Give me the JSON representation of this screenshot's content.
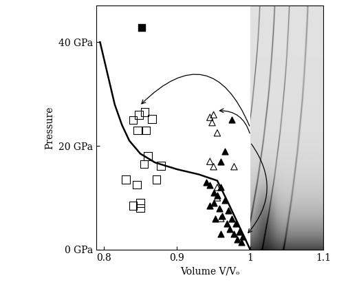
{
  "chart_data": {
    "type": "scatter",
    "x_label": "Volume V/Vₒ",
    "y_label": "Pressure",
    "xlim": [
      0.79,
      1.1
    ],
    "ylim": [
      0,
      47
    ],
    "xticks": [
      0.8,
      0.9,
      1,
      1.1
    ],
    "yticks": [
      {
        "value": 0,
        "label": "0 GPa"
      },
      {
        "value": 20,
        "label": "20 GPa"
      },
      {
        "value": 40,
        "label": "40 GPa"
      }
    ],
    "grid": false,
    "series": [
      {
        "type": "line",
        "color": "#000000",
        "line_style": "solid",
        "x": [
          0.795,
          0.805,
          0.815,
          0.825,
          0.835,
          0.85,
          0.87,
          0.9,
          0.93,
          0.955,
          0.97,
          0.985,
          1.0
        ],
        "values": [
          40,
          34,
          28,
          24,
          21,
          18.5,
          16.8,
          15.5,
          14.5,
          13.3,
          9,
          4.5,
          0
        ]
      },
      {
        "type": "scatter",
        "marker": "filled_square",
        "color": "#000000",
        "x": [
          0.852
        ],
        "values": [
          42.8
        ]
      },
      {
        "type": "scatter",
        "marker": "open_square",
        "color": "#000000",
        "x": [
          0.84,
          0.848,
          0.856,
          0.866,
          0.846,
          0.855,
          0.878,
          0.85,
          0.858,
          0.83,
          0.84,
          0.85,
          0.86,
          0.872,
          0.845
        ],
        "values": [
          25,
          26,
          26.5,
          25.2,
          23,
          16.5,
          16.2,
          8,
          23,
          13.5,
          8.5,
          9,
          18,
          13.5,
          12.5
        ]
      },
      {
        "type": "scatter",
        "marker": "open_triangle",
        "color": "#000000",
        "x": [
          0.945,
          0.95,
          0.948,
          0.955,
          0.978,
          0.955,
          0.945,
          0.95,
          0.96,
          0.955
        ],
        "values": [
          25.5,
          26,
          24.5,
          22.5,
          16,
          12,
          17,
          16,
          6,
          10
        ]
      },
      {
        "type": "scatter",
        "marker": "filled_triangle",
        "color": "#000000",
        "x": [
          0.94,
          0.945,
          0.95,
          0.95,
          0.955,
          0.958,
          0.96,
          0.962,
          0.965,
          0.968,
          0.97,
          0.972,
          0.975,
          0.978,
          0.98,
          0.982,
          0.985,
          0.988,
          0.99,
          0.945,
          0.952,
          0.96,
          0.965,
          0.975,
          0.96
        ],
        "values": [
          13,
          12.5,
          11,
          9,
          10.5,
          8,
          12,
          6.5,
          9.5,
          5,
          7.5,
          4,
          6,
          3,
          5,
          2,
          3.5,
          1.5,
          2.5,
          8.5,
          6,
          3,
          19,
          25,
          17
        ]
      }
    ]
  }
}
